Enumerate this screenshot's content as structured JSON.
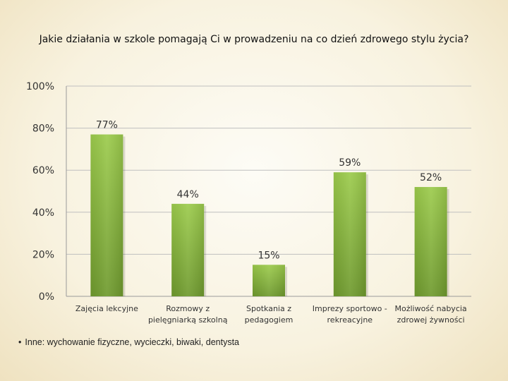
{
  "chart_data": {
    "type": "bar",
    "title": "Jakie działania w szkole pomagają Ci w prowadzeniu na co dzień zdrowego stylu życia?",
    "categories": [
      [
        "Zajęcia lekcyjne"
      ],
      [
        "Rozmowy z",
        "pielęgniarką szkolną"
      ],
      [
        "Spotkania z",
        "pedagogiem"
      ],
      [
        "Imprezy sportowo -",
        "rekreacyjne"
      ],
      [
        "Możliwość nabycia",
        "zdrowej żywności"
      ]
    ],
    "values": [
      77,
      44,
      15,
      59,
      52
    ],
    "data_labels": [
      "77%",
      "44%",
      "15%",
      "59%",
      "52%"
    ],
    "ylim": [
      0,
      100
    ],
    "yticks": [
      0,
      20,
      40,
      60,
      80,
      100
    ],
    "ytick_labels": [
      "0%",
      "20%",
      "40%",
      "60%",
      "80%",
      "100%"
    ],
    "grid": true,
    "bar_color": "#8ab842",
    "grid_color": "#bfbfbf"
  },
  "note": {
    "bullet": "•",
    "text": "Inne: wychowanie fizyczne, wycieczki, biwaki, dentysta"
  }
}
